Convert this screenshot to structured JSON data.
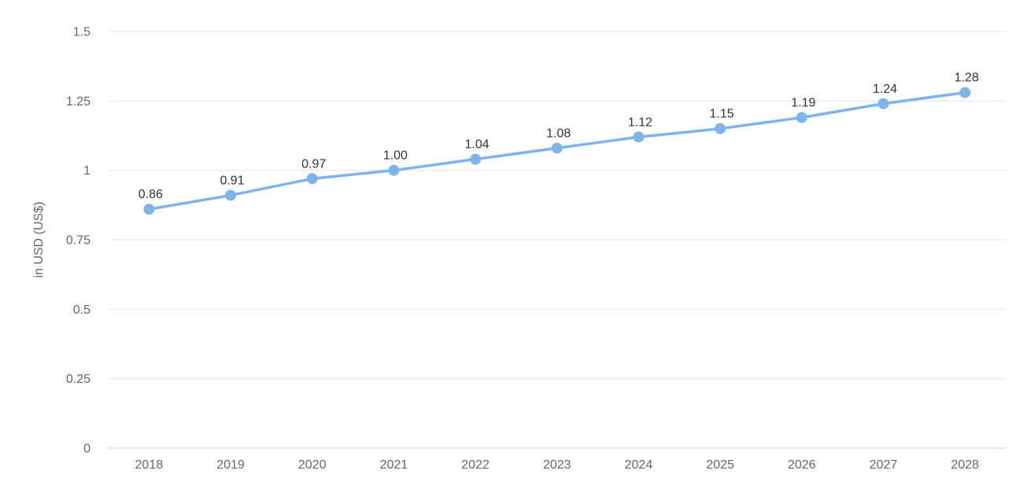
{
  "chart_data": {
    "type": "line",
    "title": "",
    "categories": [
      "2018",
      "2019",
      "2020",
      "2021",
      "2022",
      "2023",
      "2024",
      "2025",
      "2026",
      "2027",
      "2028"
    ],
    "values": [
      0.86,
      0.91,
      0.97,
      1.0,
      1.04,
      1.08,
      1.12,
      1.15,
      1.19,
      1.24,
      1.28
    ],
    "data_labels": [
      "0.86",
      "0.91",
      "0.97",
      "1.00",
      "1.04",
      "1.08",
      "1.12",
      "1.15",
      "1.19",
      "1.24",
      "1.28"
    ],
    "xlabel": "",
    "ylabel": "in USD (US$)",
    "ylim": [
      0,
      1.5
    ],
    "yticks": [
      0,
      0.25,
      0.5,
      0.75,
      1,
      1.25,
      1.5
    ],
    "ytick_labels": [
      "0",
      "0.25",
      "0.5",
      "0.75",
      "1",
      "1.25",
      "1.5"
    ],
    "grid": "horizontal",
    "legend": "none",
    "colors": {
      "series": "#7cb5ec",
      "marker": "#7cb5ec",
      "gridline": "#e6e6e6",
      "axis_line": "#ccd6eb",
      "tick_label": "#666666",
      "data_label": "#333333",
      "background": "#ffffff"
    }
  }
}
